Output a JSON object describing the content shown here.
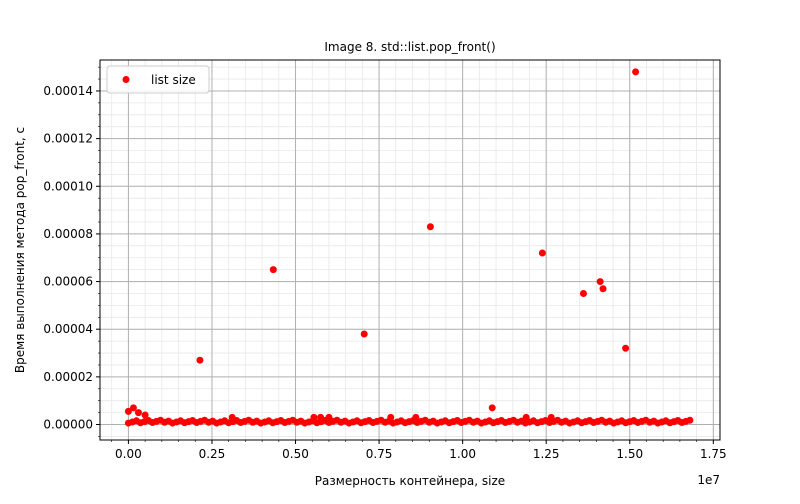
{
  "chart_data": {
    "type": "scatter",
    "title": "Image 8. std::list.pop_front()",
    "xlabel": "Размерность контейнера, size",
    "ylabel": "Время выполнения метода pop_front, с",
    "x_offset_label": "1e7",
    "xlim": [
      -0.085,
      1.77
    ],
    "ylim": [
      -6.5e-06,
      0.000153
    ],
    "x_ticks": [
      0.0,
      0.25,
      0.5,
      0.75,
      1.0,
      1.25,
      1.5,
      1.75
    ],
    "x_tick_labels": [
      "0.00",
      "0.25",
      "0.50",
      "0.75",
      "1.00",
      "1.25",
      "1.50",
      "1.75"
    ],
    "y_ticks": [
      0,
      2e-05,
      4e-05,
      6e-05,
      8e-05,
      0.0001,
      0.00012,
      0.00014
    ],
    "y_tick_labels": [
      "0.00000",
      "0.00002",
      "0.00004",
      "0.00006",
      "0.00008",
      "0.00010",
      "0.00012",
      "0.00014"
    ],
    "grid": true,
    "legend_position": "top-left",
    "series": [
      {
        "name": "list size",
        "color": "#ff0000",
        "baseline": {
          "x_start": 0.0,
          "x_end": 1.68,
          "step": 0.012,
          "y_base": 1.2e-06,
          "y_jitter": 1.2e-06
        },
        "points": [
          {
            "x": 0.0,
            "y": 5.5e-06
          },
          {
            "x": 0.015,
            "y": 7e-06
          },
          {
            "x": 0.03,
            "y": 5e-06
          },
          {
            "x": 0.05,
            "y": 4e-06
          },
          {
            "x": 0.3105,
            "y": 3e-06
          },
          {
            "x": 0.555,
            "y": 3e-06
          },
          {
            "x": 0.575,
            "y": 3e-06
          },
          {
            "x": 0.6,
            "y": 3e-06
          },
          {
            "x": 0.785,
            "y": 3e-06
          },
          {
            "x": 0.86,
            "y": 3e-06
          },
          {
            "x": 1.19,
            "y": 3e-06
          },
          {
            "x": 1.265,
            "y": 3e-06
          },
          {
            "x": 0.214,
            "y": 2.7e-05
          },
          {
            "x": 0.4335,
            "y": 6.5e-05
          },
          {
            "x": 0.7055,
            "y": 3.8e-05
          },
          {
            "x": 0.9035,
            "y": 8.3e-05
          },
          {
            "x": 1.0885,
            "y": 7e-06
          },
          {
            "x": 1.2385,
            "y": 7.2e-05
          },
          {
            "x": 1.3615,
            "y": 5.5e-05
          },
          {
            "x": 1.4115,
            "y": 6e-05
          },
          {
            "x": 1.42,
            "y": 5.7e-05
          },
          {
            "x": 1.4875,
            "y": 3.2e-05
          },
          {
            "x": 1.5175,
            "y": 0.000148
          }
        ]
      }
    ]
  }
}
